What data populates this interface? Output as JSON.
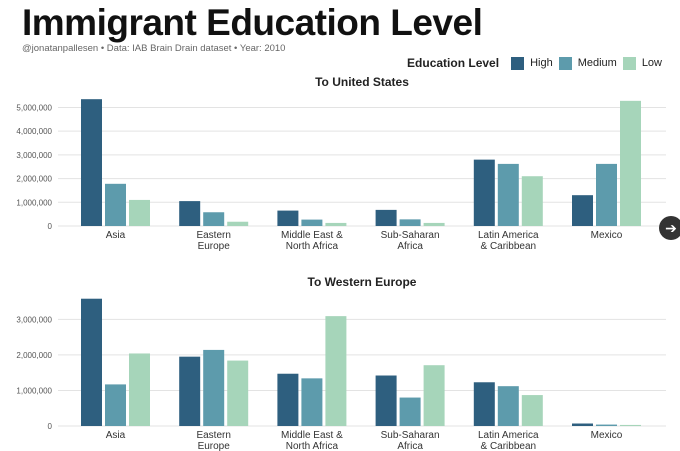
{
  "header": {
    "title": "Immigrant Education Level",
    "subtitle": "@jonatanpallesen • Data: IAB Brain Drain dataset • Year: 2010"
  },
  "legend": {
    "title": "Education Level",
    "items": [
      {
        "label": "High",
        "color": "#2e5f7f"
      },
      {
        "label": "Medium",
        "color": "#5d9bac"
      },
      {
        "label": "Low",
        "color": "#a6d5ba"
      }
    ]
  },
  "nav": {
    "next_icon": "arrow-right-icon"
  },
  "chart_data": [
    {
      "type": "bar",
      "title": "To United States",
      "categories": [
        [
          "Asia"
        ],
        [
          "Eastern",
          "Europe"
        ],
        [
          "Middle East &",
          "North Africa"
        ],
        [
          "Sub-Saharan",
          "Africa"
        ],
        [
          "Latin America",
          "& Caribbean"
        ],
        [
          "Mexico"
        ]
      ],
      "series": [
        {
          "name": "High",
          "values": [
            5350000,
            1050000,
            650000,
            680000,
            2800000,
            1300000
          ]
        },
        {
          "name": "Medium",
          "values": [
            1780000,
            580000,
            270000,
            280000,
            2620000,
            2620000
          ]
        },
        {
          "name": "Low",
          "values": [
            1100000,
            180000,
            130000,
            130000,
            2100000,
            5280000
          ]
        }
      ],
      "ylim": [
        0,
        5400000
      ],
      "yticks": [
        0,
        1000000,
        2000000,
        3000000,
        4000000,
        5000000
      ],
      "ytick_labels": [
        "0",
        "1,000,000",
        "2,000,000",
        "3,000,000",
        "4,000,000",
        "5,000,000"
      ],
      "grid": true
    },
    {
      "type": "bar",
      "title": "To Western Europe",
      "categories": [
        [
          "Asia"
        ],
        [
          "Eastern",
          "Europe"
        ],
        [
          "Middle East &",
          "North Africa"
        ],
        [
          "Sub-Saharan",
          "Africa"
        ],
        [
          "Latin America",
          "& Caribbean"
        ],
        [
          "Mexico"
        ]
      ],
      "series": [
        {
          "name": "High",
          "values": [
            3580000,
            1950000,
            1470000,
            1420000,
            1230000,
            70000
          ]
        },
        {
          "name": "Medium",
          "values": [
            1170000,
            2140000,
            1340000,
            800000,
            1120000,
            40000
          ]
        },
        {
          "name": "Low",
          "values": [
            2040000,
            1840000,
            3090000,
            1710000,
            870000,
            30000
          ]
        }
      ],
      "ylim": [
        0,
        3600000
      ],
      "yticks": [
        0,
        1000000,
        2000000,
        3000000
      ],
      "ytick_labels": [
        "0",
        "1,000,000",
        "2,000,000",
        "3,000,000"
      ],
      "grid": true
    }
  ]
}
